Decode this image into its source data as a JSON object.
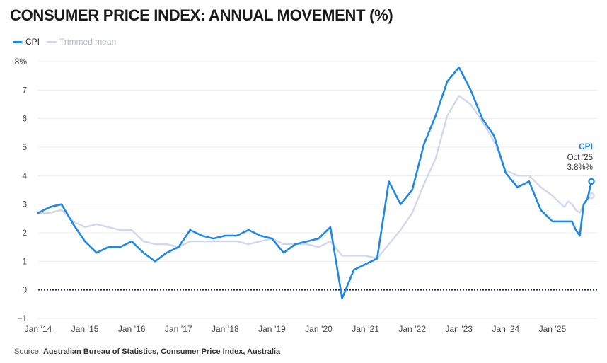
{
  "colors": {
    "cpi": "#1e88e5",
    "trimmed_mean": "#d3d6ef",
    "zero_line": "#1a237e",
    "grid": "#ececec",
    "axis_text": "#444444"
  },
  "chart_data": {
    "type": "line",
    "title": "CONSUMER PRICE INDEX: ANNUAL MOVEMENT (%)",
    "xlabel": "",
    "ylabel": "",
    "ylim": [
      -1,
      8
    ],
    "xlim": [
      2014.0,
      2025.8333
    ],
    "y_ticks": [
      {
        "value": 8,
        "label": "8%"
      },
      {
        "value": 7,
        "label": "7"
      },
      {
        "value": 6,
        "label": "6"
      },
      {
        "value": 5,
        "label": "5"
      },
      {
        "value": 4,
        "label": "4"
      },
      {
        "value": 3,
        "label": "3"
      },
      {
        "value": 2,
        "label": "2"
      },
      {
        "value": 1,
        "label": "1"
      },
      {
        "value": 0,
        "label": "0"
      },
      {
        "value": -1,
        "label": "−1"
      }
    ],
    "x_ticks": [
      {
        "value": 2014,
        "label": "Jan ’14"
      },
      {
        "value": 2015,
        "label": "Jan ’15"
      },
      {
        "value": 2016,
        "label": "Jan ’16"
      },
      {
        "value": 2017,
        "label": "Jan ’17"
      },
      {
        "value": 2018,
        "label": "Jan ’18"
      },
      {
        "value": 2019,
        "label": "Jan ’19"
      },
      {
        "value": 2020,
        "label": "Jan ’20"
      },
      {
        "value": 2021,
        "label": "Jan ’21"
      },
      {
        "value": 2022,
        "label": "Jan ’22"
      },
      {
        "value": 2023,
        "label": "Jan ’23"
      },
      {
        "value": 2024,
        "label": "Jan ’24"
      },
      {
        "value": 2025,
        "label": "Jan ’25"
      }
    ],
    "legend_position": "top-left",
    "series": [
      {
        "name": "CPI",
        "color_key": "cpi",
        "points": [
          [
            2014.0,
            2.7
          ],
          [
            2014.25,
            2.9
          ],
          [
            2014.5,
            3.0
          ],
          [
            2014.75,
            2.3
          ],
          [
            2015.0,
            1.7
          ],
          [
            2015.25,
            1.3
          ],
          [
            2015.5,
            1.5
          ],
          [
            2015.75,
            1.5
          ],
          [
            2016.0,
            1.7
          ],
          [
            2016.25,
            1.3
          ],
          [
            2016.5,
            1.0
          ],
          [
            2016.75,
            1.3
          ],
          [
            2017.0,
            1.5
          ],
          [
            2017.25,
            2.1
          ],
          [
            2017.5,
            1.9
          ],
          [
            2017.75,
            1.8
          ],
          [
            2018.0,
            1.9
          ],
          [
            2018.25,
            1.9
          ],
          [
            2018.5,
            2.1
          ],
          [
            2018.75,
            1.9
          ],
          [
            2019.0,
            1.8
          ],
          [
            2019.25,
            1.3
          ],
          [
            2019.5,
            1.6
          ],
          [
            2019.75,
            1.7
          ],
          [
            2020.0,
            1.8
          ],
          [
            2020.25,
            2.2
          ],
          [
            2020.5,
            -0.3
          ],
          [
            2020.75,
            0.7
          ],
          [
            2021.0,
            0.9
          ],
          [
            2021.25,
            1.1
          ],
          [
            2021.5,
            3.8
          ],
          [
            2021.75,
            3.0
          ],
          [
            2022.0,
            3.5
          ],
          [
            2022.25,
            5.1
          ],
          [
            2022.5,
            6.1
          ],
          [
            2022.75,
            7.3
          ],
          [
            2023.0,
            7.8
          ],
          [
            2023.25,
            7.0
          ],
          [
            2023.5,
            6.0
          ],
          [
            2023.75,
            5.4
          ],
          [
            2024.0,
            4.1
          ],
          [
            2024.25,
            3.6
          ],
          [
            2024.5,
            3.8
          ],
          [
            2024.75,
            2.8
          ],
          [
            2025.0,
            2.4
          ],
          [
            2025.25,
            2.4
          ],
          [
            2025.4167,
            2.4
          ],
          [
            2025.5,
            2.1
          ],
          [
            2025.5833,
            1.9
          ],
          [
            2025.6667,
            3.0
          ],
          [
            2025.75,
            3.2
          ],
          [
            2025.8333,
            3.8
          ]
        ]
      },
      {
        "name": "Trimmed mean",
        "color_key": "trimmed_mean",
        "points": [
          [
            2014.0,
            2.7
          ],
          [
            2014.25,
            2.7
          ],
          [
            2014.5,
            2.8
          ],
          [
            2014.75,
            2.4
          ],
          [
            2015.0,
            2.2
          ],
          [
            2015.25,
            2.3
          ],
          [
            2015.5,
            2.2
          ],
          [
            2015.75,
            2.1
          ],
          [
            2016.0,
            2.1
          ],
          [
            2016.25,
            1.7
          ],
          [
            2016.5,
            1.6
          ],
          [
            2016.75,
            1.6
          ],
          [
            2017.0,
            1.5
          ],
          [
            2017.25,
            1.7
          ],
          [
            2017.5,
            1.7
          ],
          [
            2017.75,
            1.7
          ],
          [
            2018.0,
            1.7
          ],
          [
            2018.25,
            1.7
          ],
          [
            2018.5,
            1.6
          ],
          [
            2018.75,
            1.7
          ],
          [
            2019.0,
            1.8
          ],
          [
            2019.25,
            1.6
          ],
          [
            2019.5,
            1.6
          ],
          [
            2019.75,
            1.6
          ],
          [
            2020.0,
            1.5
          ],
          [
            2020.25,
            1.7
          ],
          [
            2020.5,
            1.2
          ],
          [
            2020.75,
            1.2
          ],
          [
            2021.0,
            1.2
          ],
          [
            2021.25,
            1.1
          ],
          [
            2021.5,
            1.6
          ],
          [
            2021.75,
            2.1
          ],
          [
            2022.0,
            2.7
          ],
          [
            2022.25,
            3.7
          ],
          [
            2022.5,
            4.6
          ],
          [
            2022.75,
            6.1
          ],
          [
            2023.0,
            6.8
          ],
          [
            2023.25,
            6.5
          ],
          [
            2023.5,
            5.9
          ],
          [
            2023.75,
            5.2
          ],
          [
            2024.0,
            4.2
          ],
          [
            2024.25,
            4.0
          ],
          [
            2024.5,
            4.0
          ],
          [
            2024.75,
            3.6
          ],
          [
            2025.0,
            3.3
          ],
          [
            2025.25,
            2.9
          ],
          [
            2025.3333,
            3.1
          ],
          [
            2025.4167,
            3.0
          ],
          [
            2025.5,
            2.8
          ],
          [
            2025.5833,
            2.7
          ],
          [
            2025.6667,
            3.0
          ],
          [
            2025.8333,
            3.3
          ]
        ]
      }
    ],
    "annotation": {
      "series": "CPI",
      "title": "CPI",
      "date": "Oct ’25",
      "value_label": "3.8%%",
      "x": 2025.8333,
      "y": 3.8
    },
    "source": {
      "prefix": "Source: ",
      "text": "Australian Bureau of Statistics, Consumer Price Index, Australia"
    }
  }
}
